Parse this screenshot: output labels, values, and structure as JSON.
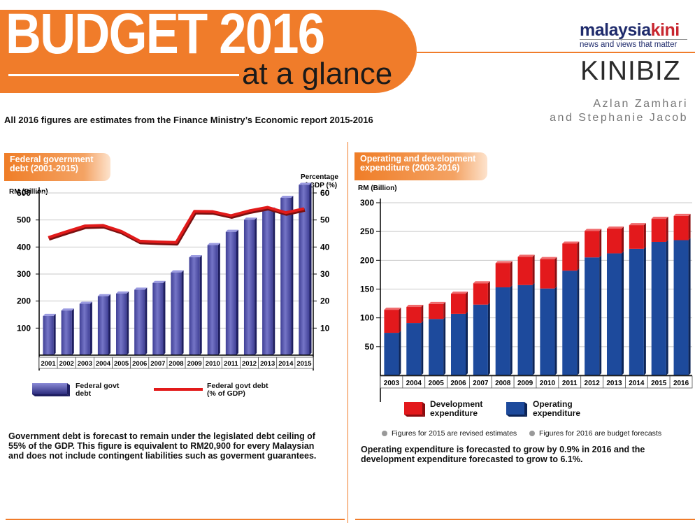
{
  "header": {
    "title": "BUDGET 2016",
    "subtitle": "at a glance",
    "intro": "All 2016 figures are estimates from the Finance Ministry’s Economic report 2015-2016"
  },
  "brand": {
    "name_part1": "malaysia",
    "name_part2": "kini",
    "tagline": "news and views that matter",
    "kinibiz": "KINIBIZ",
    "author_line1": "Azlan Zamhari",
    "author_line2": "and Stephanie Jacob"
  },
  "left_panel": {
    "section_title_1": "Federal government",
    "section_title_2": "debt (2001-2015)",
    "left_axis_label": "RM (Billion)",
    "right_axis_label_1": "Percentage",
    "right_axis_label_2": "of GDP (%)",
    "legend_bar_1": "Federal govt",
    "legend_bar_2": "debt",
    "legend_line_1": "Federal govt debt",
    "legend_line_2": "(% of GDP)",
    "note": "Government debt is forecast to remain under the legislated debt ceiling of 55% of the GDP. This figure is equivalent to RM20,900 for every Malaysian and does not include contingent liabilities such as goverment guarantees."
  },
  "right_panel": {
    "section_title_1": "Operating and development",
    "section_title_2": "expenditure (2003-2016)",
    "axis_label": "RM (Billion)",
    "legend_dev_1": "Development",
    "legend_dev_2": "expenditure",
    "legend_op_1": "Operating",
    "legend_op_2": "expenditure",
    "footnote_1": "Figures for 2015 are revised estimates",
    "footnote_2": "Figures for 2016 are budget forecasts",
    "note": "Operating expenditure is forecasted to grow by 0.9% in 2016 and the development expenditure forecasted to grow to 6.1%."
  },
  "colors": {
    "orange": "#f07c2a",
    "debt_bar": "#3f3f95",
    "debt_bar_light": "#7575c7",
    "gdp_line": "#e21a1a",
    "operating": "#1d4a9c",
    "development": "#e3191c"
  },
  "chart_data": [
    {
      "type": "bar",
      "title": "Federal government debt (2001-2015)",
      "categories": [
        "2001",
        "2002",
        "2003",
        "2004",
        "2005",
        "2006",
        "2007",
        "2008",
        "2009",
        "2010",
        "2011",
        "2012",
        "2013",
        "2014",
        "2015"
      ],
      "series": [
        {
          "name": "Federal govt debt",
          "axis": "left",
          "values": [
            145,
            165,
            190,
            218,
            228,
            242,
            267,
            306,
            362,
            407,
            456,
            501,
            539,
            582,
            630
          ]
        },
        {
          "name": "Federal govt debt (% of GDP)",
          "type": "line",
          "axis": "right",
          "values": [
            43.5,
            45.7,
            47.8,
            48.0,
            45.8,
            42.2,
            41.9,
            41.7,
            53.2,
            53.1,
            51.6,
            53.4,
            54.7,
            52.7,
            54.2
          ]
        }
      ],
      "ylabel": "RM (Billion)",
      "y2label": "Percentage of GDP (%)",
      "ylim": [
        0,
        600
      ],
      "yticks": [
        100,
        200,
        300,
        400,
        500,
        600
      ],
      "y2lim": [
        0,
        60
      ],
      "y2ticks": [
        10,
        20,
        30,
        40,
        50,
        60
      ]
    },
    {
      "type": "bar",
      "stacked": true,
      "title": "Operating and development expenditure (2003-2016)",
      "categories": [
        "2003",
        "2004",
        "2005",
        "2006",
        "2007",
        "2008",
        "2009",
        "2010",
        "2011",
        "2012",
        "2013",
        "2014",
        "2015",
        "2016"
      ],
      "series": [
        {
          "name": "Operating expenditure",
          "values": [
            74,
            91,
            98,
            107,
            123,
            153,
            157,
            151,
            182,
            205,
            212,
            220,
            232,
            235
          ]
        },
        {
          "name": "Development expenditure",
          "values": [
            40,
            28,
            26,
            35,
            37,
            42,
            49,
            51,
            47,
            46,
            43,
            41,
            40,
            42
          ]
        }
      ],
      "ylabel": "RM (Billion)",
      "ylim": [
        0,
        300
      ],
      "yticks": [
        50,
        100,
        150,
        200,
        250,
        300
      ]
    }
  ]
}
